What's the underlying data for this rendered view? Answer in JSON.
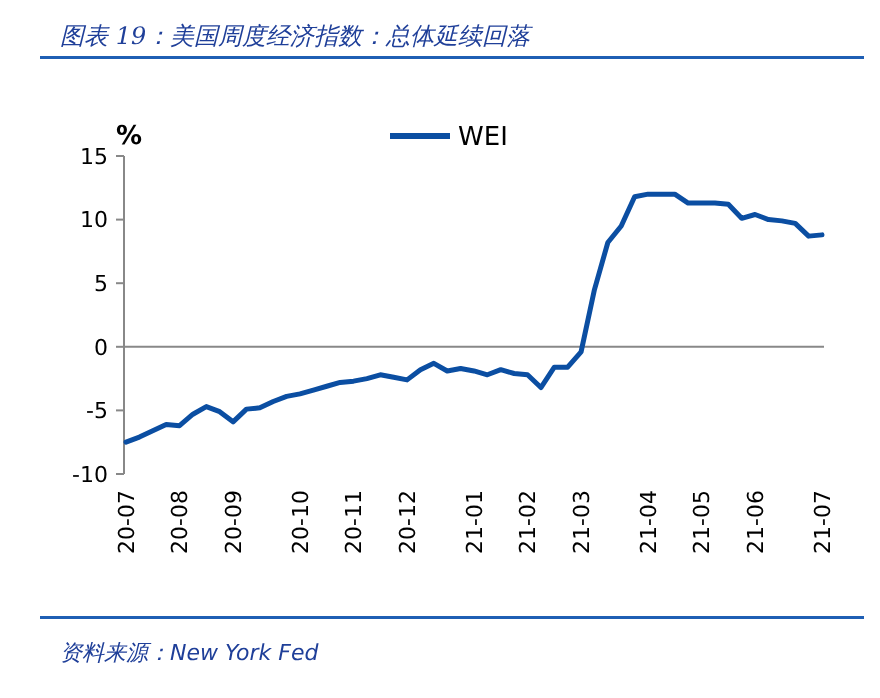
{
  "chart_data": {
    "type": "line",
    "title": "图表 19：美国周度经济指数：总体延续回落",
    "ylabel": "%",
    "annotations": [
      "资料来源：New York Fed"
    ],
    "categories": [
      "20-07",
      null,
      null,
      null,
      "20-08",
      null,
      null,
      null,
      "20-09",
      null,
      null,
      null,
      null,
      "20-10",
      null,
      null,
      null,
      "20-11",
      null,
      null,
      null,
      "20-12",
      null,
      null,
      null,
      null,
      "21-01",
      null,
      null,
      null,
      "21-02",
      null,
      null,
      null,
      "21-03",
      null,
      null,
      null,
      null,
      "21-04",
      null,
      null,
      null,
      "21-05",
      null,
      null,
      null,
      "21-06",
      null,
      null,
      null,
      null,
      "21-07"
    ],
    "series": [
      {
        "name": "WEI",
        "color": "#0b4ea2",
        "values": [
          -7.5,
          -7.1,
          -6.6,
          -6.1,
          -6.2,
          -5.3,
          -4.7,
          -5.1,
          -5.9,
          -4.9,
          -4.8,
          -4.3,
          -3.9,
          -3.7,
          -3.4,
          -3.1,
          -2.8,
          -2.7,
          -2.5,
          -2.2,
          -2.4,
          -2.6,
          -1.8,
          -1.3,
          -1.9,
          -1.7,
          -1.9,
          -2.2,
          -1.8,
          -2.1,
          -2.2,
          -3.2,
          -1.6,
          -1.6,
          -0.4,
          4.5,
          8.2,
          9.5,
          11.8,
          12.0,
          12.0,
          12.0,
          11.3,
          11.3,
          11.3,
          11.2,
          10.1,
          10.4,
          10.0,
          9.9,
          9.7,
          8.7,
          8.8
        ]
      }
    ],
    "ylim": [
      -10,
      15
    ],
    "yticks": [
      -10,
      -5,
      0,
      5,
      10,
      15
    ],
    "legend": "top",
    "marker": "none",
    "line_style": "solid"
  }
}
